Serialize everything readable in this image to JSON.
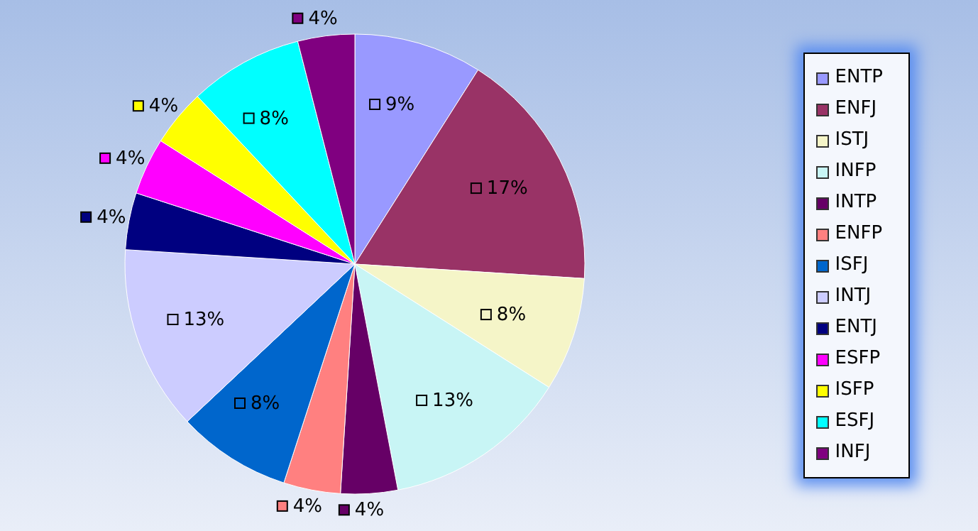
{
  "chart_data": {
    "type": "pie",
    "categories": [
      "ENTP",
      "ENFJ",
      "ISTJ",
      "INFP",
      "INTP",
      "ENFP",
      "ISFJ",
      "INTJ",
      "ENTJ",
      "ESFP",
      "ISFP",
      "ESFJ",
      "INFJ"
    ],
    "values": [
      9,
      17,
      8,
      13,
      4,
      4,
      8,
      13,
      4,
      4,
      4,
      8,
      4
    ],
    "value_labels": [
      "9%",
      "17%",
      "8%",
      "13%",
      "4%",
      "4%",
      "8%",
      "13%",
      "4%",
      "4%",
      "4%",
      "8%",
      "4%"
    ],
    "colors": [
      "#9999ff",
      "#993366",
      "#f5f5c8",
      "#c8f5f5",
      "#660066",
      "#ff8080",
      "#0066cc",
      "#ccccff",
      "#000080",
      "#ff00ff",
      "#ffff00",
      "#00ffff",
      "#800080"
    ],
    "legend": "right"
  }
}
